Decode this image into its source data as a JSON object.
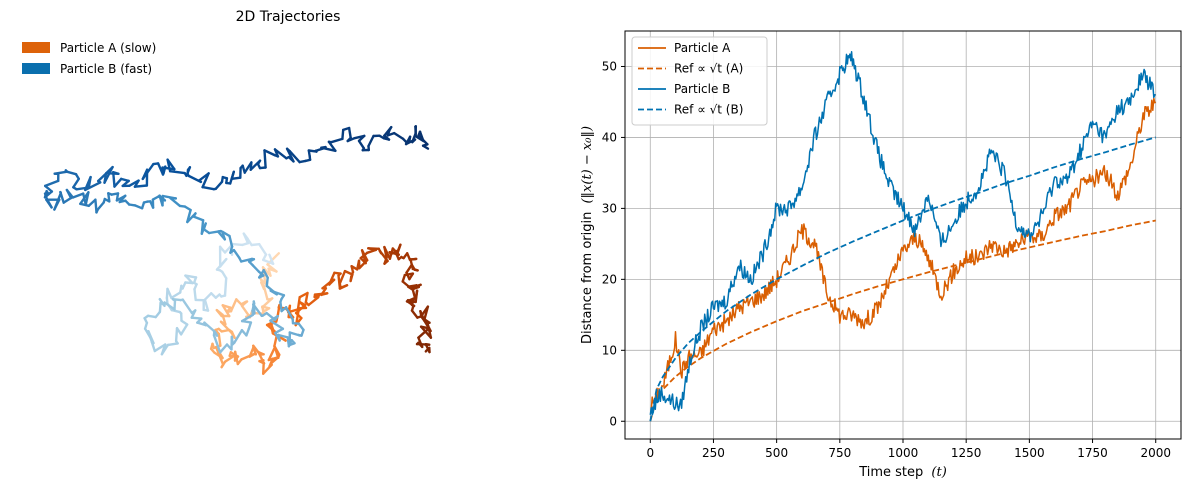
{
  "chart_data": [
    {
      "type": "line",
      "title": "2D Trajectories",
      "axes_visible": false,
      "legend": {
        "placement": "top-left",
        "entries": [
          {
            "label": "Particle A (slow)",
            "color": "#dd6209"
          },
          {
            "label": "Particle B (fast)",
            "color": "#0a6fae"
          }
        ]
      },
      "series": [
        {
          "name": "Particle A (slow)",
          "colormap": "Oranges",
          "trajectory_points": [
            [
              0.0,
              0.0
            ],
            [
              -0.2,
              -0.35
            ],
            [
              -0.1,
              -0.7
            ],
            [
              -0.45,
              -0.95
            ],
            [
              -0.8,
              -0.8
            ],
            [
              -1.2,
              -0.95
            ],
            [
              -1.0,
              -1.3
            ],
            [
              -1.35,
              -1.4
            ],
            [
              -1.15,
              -1.75
            ],
            [
              -0.75,
              -1.7
            ],
            [
              -0.35,
              -1.6
            ],
            [
              -0.3,
              -1.9
            ],
            [
              0.0,
              -1.75
            ],
            [
              0.15,
              -1.4
            ],
            [
              -0.1,
              -1.1
            ],
            [
              0.3,
              -0.85
            ],
            [
              0.55,
              -1.05
            ],
            [
              0.7,
              -0.7
            ],
            [
              1.05,
              -0.65
            ],
            [
              1.35,
              -0.3
            ],
            [
              1.6,
              -0.4
            ],
            [
              1.85,
              -0.1
            ],
            [
              2.1,
              0.1
            ],
            [
              2.45,
              0.05
            ],
            [
              2.75,
              0.2
            ],
            [
              3.05,
              0.1
            ],
            [
              3.2,
              -0.1
            ],
            [
              3.05,
              -0.35
            ],
            [
              3.2,
              -0.5
            ],
            [
              3.05,
              -0.75
            ],
            [
              3.35,
              -0.9
            ],
            [
              3.5,
              -1.15
            ],
            [
              3.35,
              -1.4
            ],
            [
              3.45,
              -1.6
            ]
          ]
        },
        {
          "name": "Particle B (fast)",
          "colormap": "Blues",
          "trajectory_points": [
            [
              0.0,
              0.0
            ],
            [
              -0.6,
              0.4
            ],
            [
              -1.2,
              0.1
            ],
            [
              -1.1,
              -0.5
            ],
            [
              -1.6,
              -0.8
            ],
            [
              -1.9,
              -0.3
            ],
            [
              -2.4,
              -0.6
            ],
            [
              -2.0,
              -1.2
            ],
            [
              -2.5,
              -1.6
            ],
            [
              -2.9,
              -1.2
            ],
            [
              -2.6,
              -0.8
            ],
            [
              -2.1,
              -0.7
            ],
            [
              -1.6,
              -1.1
            ],
            [
              -1.2,
              -1.5
            ],
            [
              -0.7,
              -1.3
            ],
            [
              -0.5,
              -0.8
            ],
            [
              0.0,
              -1.0
            ],
            [
              0.3,
              -1.5
            ],
            [
              0.6,
              -1.2
            ],
            [
              0.2,
              -0.7
            ],
            [
              -0.2,
              -0.3
            ],
            [
              -0.6,
              0.0
            ],
            [
              -1.1,
              0.4
            ],
            [
              -1.6,
              0.55
            ],
            [
              -2.1,
              0.9
            ],
            [
              -2.6,
              1.1
            ],
            [
              -3.1,
              0.9
            ],
            [
              -3.6,
              1.15
            ],
            [
              -4.1,
              0.95
            ],
            [
              -4.5,
              1.15
            ],
            [
              -5.0,
              1.0
            ],
            [
              -5.3,
              1.2
            ],
            [
              -4.8,
              1.45
            ],
            [
              -4.3,
              1.3
            ],
            [
              -3.8,
              1.5
            ],
            [
              -3.3,
              1.3
            ],
            [
              -2.8,
              1.55
            ],
            [
              -2.3,
              1.7
            ],
            [
              -1.8,
              1.45
            ],
            [
              -1.3,
              1.3
            ],
            [
              -0.8,
              1.55
            ],
            [
              -0.3,
              1.7
            ],
            [
              0.2,
              1.9
            ],
            [
              0.7,
              1.75
            ],
            [
              1.2,
              2.0
            ],
            [
              1.7,
              2.2
            ],
            [
              2.2,
              2.0
            ],
            [
              2.6,
              2.25
            ],
            [
              3.0,
              2.1
            ],
            [
              3.3,
              2.3
            ],
            [
              3.5,
              1.95
            ]
          ]
        }
      ]
    },
    {
      "type": "line",
      "xlabel": "Time step",
      "xlabel_math": "(t)",
      "ylabel": "Distance from origin",
      "ylabel_math": "(‖x(t) − x₀‖)",
      "xlim": [
        -100,
        2100
      ],
      "ylim": [
        -2.5,
        55
      ],
      "xticks": [
        0,
        250,
        500,
        750,
        1000,
        1250,
        1500,
        1750,
        2000
      ],
      "yticks": [
        0,
        10,
        20,
        30,
        40,
        50
      ],
      "grid": true,
      "legend": {
        "placement": "top-left",
        "entries": [
          {
            "label": "Particle A",
            "style": "solid",
            "color": "#d95f02"
          },
          {
            "label": "Ref ∝ √t (A)",
            "style": "dashed",
            "color": "#d95f02"
          },
          {
            "label": "Particle B",
            "style": "solid",
            "color": "#0072b2"
          },
          {
            "label": "Ref ∝ √t (B)",
            "style": "dashed",
            "color": "#0072b2"
          }
        ]
      },
      "series": [
        {
          "name": "Particle A",
          "style": "solid",
          "color": "#d95f02",
          "x": [
            0,
            50,
            100,
            125,
            150,
            200,
            250,
            300,
            350,
            400,
            450,
            500,
            550,
            600,
            650,
            700,
            750,
            800,
            850,
            900,
            950,
            1000,
            1050,
            1100,
            1150,
            1200,
            1250,
            1300,
            1350,
            1400,
            1450,
            1500,
            1550,
            1600,
            1650,
            1700,
            1750,
            1800,
            1850,
            1900,
            1950,
            2000
          ],
          "y": [
            2,
            5,
            11.5,
            7,
            9,
            9.5,
            13,
            14,
            16,
            17,
            18,
            20,
            23,
            27,
            25,
            18,
            15,
            15,
            14,
            16,
            20,
            24,
            26,
            23,
            18,
            21,
            23,
            23,
            25,
            24,
            25,
            26,
            26,
            29,
            30,
            33,
            34,
            35,
            32,
            36,
            43,
            45
          ]
        },
        {
          "name": "Ref ∝ √t (A)",
          "style": "dashed",
          "color": "#d95f02",
          "x": [
            0,
            25,
            50,
            100,
            150,
            200,
            300,
            400,
            500,
            600,
            700,
            800,
            900,
            1000,
            1100,
            1200,
            1300,
            1400,
            1500,
            1600,
            1700,
            1800,
            1900,
            2000
          ],
          "y": [
            0,
            3.2,
            4.5,
            6.3,
            7.7,
            8.9,
            10.9,
            12.6,
            14.1,
            15.5,
            16.7,
            17.9,
            19,
            20,
            21,
            21.9,
            22.8,
            23.7,
            24.5,
            25.3,
            26.1,
            26.8,
            27.6,
            28.3
          ]
        },
        {
          "name": "Particle B",
          "style": "solid",
          "color": "#0072b2",
          "x": [
            0,
            40,
            80,
            120,
            160,
            200,
            250,
            300,
            350,
            400,
            450,
            500,
            550,
            600,
            650,
            700,
            750,
            780,
            800,
            850,
            900,
            950,
            1000,
            1050,
            1100,
            1150,
            1200,
            1250,
            1300,
            1350,
            1400,
            1450,
            1500,
            1550,
            1600,
            1650,
            1700,
            1750,
            1800,
            1850,
            1900,
            1950,
            2000
          ],
          "y": [
            1,
            4,
            3,
            2,
            9,
            13,
            16,
            17,
            22,
            20,
            24,
            30,
            30,
            33,
            40,
            45,
            49,
            51,
            51,
            45,
            38,
            33,
            30,
            27,
            32,
            25,
            28,
            31,
            33,
            38,
            35,
            28,
            26,
            29,
            34,
            34,
            38,
            42,
            40,
            44,
            45,
            49,
            46
          ]
        },
        {
          "name": "Ref ∝ √t (B)",
          "style": "dashed",
          "color": "#0072b2",
          "x": [
            0,
            25,
            50,
            100,
            150,
            200,
            300,
            400,
            500,
            600,
            700,
            800,
            900,
            1000,
            1100,
            1200,
            1300,
            1400,
            1500,
            1600,
            1700,
            1800,
            1900,
            2000
          ],
          "y": [
            0,
            4.5,
            6.3,
            8.9,
            11,
            12.6,
            15.5,
            17.9,
            20,
            21.9,
            23.7,
            25.3,
            26.8,
            28.3,
            29.7,
            31,
            32.2,
            33.5,
            34.6,
            35.8,
            36.9,
            37.9,
            39,
            40
          ]
        }
      ]
    }
  ]
}
